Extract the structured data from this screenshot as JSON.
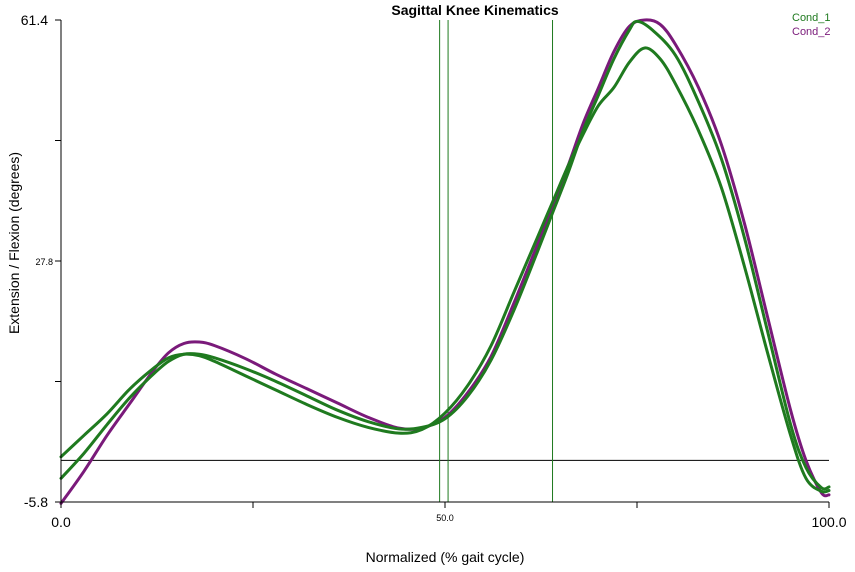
{
  "chart_data": {
    "type": "line",
    "title": "Sagittal Knee Kinematics",
    "xlabel": "Normalized (% gait cycle)",
    "ylabel": "Extension / Flexion (degrees)",
    "xlim": [
      0,
      100
    ],
    "ylim": [
      -5.8,
      61.4
    ],
    "x_ticks": [
      {
        "value": 0,
        "label": "0.0",
        "size": "large"
      },
      {
        "value": 50,
        "label": "50.0",
        "size": "small"
      },
      {
        "value": 100,
        "label": "100.0",
        "size": "large"
      }
    ],
    "y_ticks": [
      {
        "value": -5.8,
        "label": "-5.8",
        "size": "large"
      },
      {
        "value": 27.8,
        "label": "27.8",
        "size": "small"
      },
      {
        "value": 61.4,
        "label": "61.4",
        "size": "large"
      }
    ],
    "minor_y_ticks": [
      11,
      44.6
    ],
    "minor_x_ticks": [
      25,
      75
    ],
    "reference_line_y": 0,
    "event_lines_x": [
      49.3,
      50.4,
      64.0
    ],
    "legend_position": "top-right",
    "colors": {
      "cond1": "#1f7a1f",
      "cond2": "#7a1a7a",
      "event": "#1f7a1f",
      "reference": "#000000"
    },
    "legend": [
      {
        "label": "Cond_1",
        "color": "#1f7a1f"
      },
      {
        "label": "Cond_2",
        "color": "#7a1a7a"
      }
    ],
    "series": [
      {
        "name": "Cond_2",
        "color": "#7a1a7a",
        "points": [
          [
            0,
            -6
          ],
          [
            3,
            -1.5
          ],
          [
            6,
            3.5
          ],
          [
            9,
            8
          ],
          [
            12,
            12.5
          ],
          [
            14,
            15
          ],
          [
            16,
            16.3
          ],
          [
            18,
            16.5
          ],
          [
            20,
            16
          ],
          [
            24,
            14.2
          ],
          [
            28,
            12
          ],
          [
            32,
            10
          ],
          [
            36,
            8
          ],
          [
            40,
            6
          ],
          [
            44,
            4.5
          ],
          [
            47,
            4.5
          ],
          [
            50,
            6
          ],
          [
            53,
            9.5
          ],
          [
            56,
            14.5
          ],
          [
            59,
            22
          ],
          [
            62,
            30
          ],
          [
            64,
            35.5
          ],
          [
            66,
            41
          ],
          [
            68,
            47
          ],
          [
            70,
            52
          ],
          [
            72,
            57
          ],
          [
            74,
            60.5
          ],
          [
            76,
            61.4
          ],
          [
            78,
            60.8
          ],
          [
            80,
            58
          ],
          [
            83,
            52
          ],
          [
            86,
            44
          ],
          [
            89,
            33
          ],
          [
            92,
            20
          ],
          [
            95,
            7
          ],
          [
            97,
            0
          ],
          [
            99,
            -4.5
          ],
          [
            100,
            -4.8
          ]
        ]
      },
      {
        "name": "Cond_1",
        "color": "#1f7a1f",
        "points": [
          [
            0,
            -2.5
          ],
          [
            3,
            1
          ],
          [
            6,
            5
          ],
          [
            9,
            8.8
          ],
          [
            12,
            12
          ],
          [
            14,
            13.8
          ],
          [
            16,
            14.8
          ],
          [
            18,
            14.8
          ],
          [
            20,
            14.3
          ],
          [
            24,
            12.8
          ],
          [
            28,
            11
          ],
          [
            32,
            9
          ],
          [
            36,
            7
          ],
          [
            40,
            5.4
          ],
          [
            44,
            4.4
          ],
          [
            47,
            4.6
          ],
          [
            50,
            5.8
          ],
          [
            53,
            9
          ],
          [
            56,
            14
          ],
          [
            59,
            21
          ],
          [
            62,
            29
          ],
          [
            64,
            34.5
          ],
          [
            66,
            40
          ],
          [
            68,
            46
          ],
          [
            70,
            51
          ],
          [
            72,
            56
          ],
          [
            74,
            60
          ],
          [
            75,
            61.2
          ],
          [
            77,
            60
          ],
          [
            80,
            56.5
          ],
          [
            83,
            50
          ],
          [
            86,
            42
          ],
          [
            89,
            31
          ],
          [
            92,
            18
          ],
          [
            95,
            5
          ],
          [
            97,
            -1
          ],
          [
            99,
            -3.8
          ],
          [
            100,
            -3.7
          ]
        ]
      },
      {
        "name": "Cond_1",
        "color": "#1f7a1f",
        "points": [
          [
            0,
            0.5
          ],
          [
            3,
            3.5
          ],
          [
            6,
            6.5
          ],
          [
            9,
            10
          ],
          [
            12,
            12.8
          ],
          [
            14,
            14.3
          ],
          [
            16,
            14.8
          ],
          [
            18,
            14.6
          ],
          [
            20,
            13.8
          ],
          [
            24,
            11.8
          ],
          [
            28,
            9.8
          ],
          [
            32,
            7.8
          ],
          [
            36,
            6
          ],
          [
            40,
            4.6
          ],
          [
            44,
            3.8
          ],
          [
            47,
            4.3
          ],
          [
            50,
            6.6
          ],
          [
            53,
            10.5
          ],
          [
            56,
            16
          ],
          [
            59,
            23.5
          ],
          [
            62,
            31
          ],
          [
            64,
            36
          ],
          [
            66,
            41
          ],
          [
            68,
            45.5
          ],
          [
            70,
            49.5
          ],
          [
            72,
            52
          ],
          [
            74,
            55.5
          ],
          [
            76,
            57.5
          ],
          [
            78,
            56
          ],
          [
            80,
            52.5
          ],
          [
            83,
            46
          ],
          [
            86,
            38
          ],
          [
            89,
            27
          ],
          [
            92,
            15
          ],
          [
            95,
            3.5
          ],
          [
            97,
            -2.5
          ],
          [
            99,
            -4.3
          ],
          [
            100,
            -4.2
          ]
        ]
      }
    ]
  }
}
